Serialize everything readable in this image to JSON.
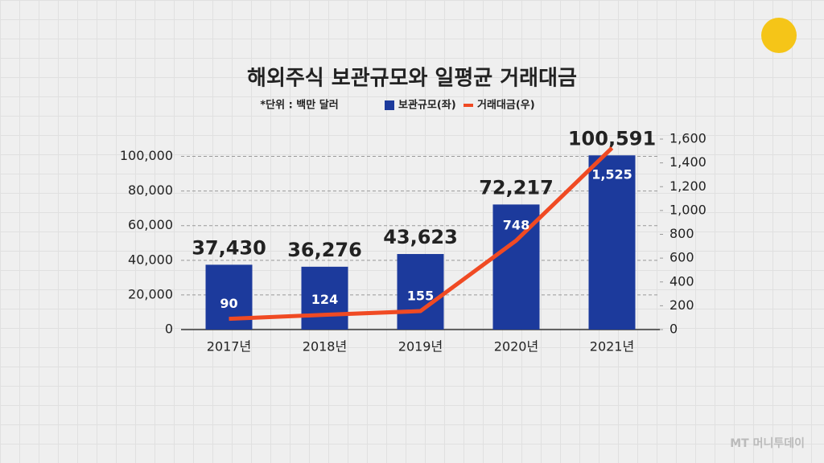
{
  "chart_data": {
    "type": "bar",
    "title": "해외주식 보관규모와 일평균 거래대금",
    "subtitle": "*단위 : 백만 달러",
    "watermark": "MT 머니투데이",
    "categories": [
      "2017년",
      "2018년",
      "2019년",
      "2020년",
      "2021년"
    ],
    "series": [
      {
        "name": "보관규모(좌)",
        "color": "#1c3a9c",
        "values": [
          37430,
          36276,
          43623,
          72217,
          100591
        ],
        "value_labels": [
          "37,430",
          "36,276",
          "43,623",
          "72,217",
          "100,591"
        ]
      },
      {
        "name": "거래대금(우)",
        "type": "line",
        "axis": "y2",
        "color": "#f04a23",
        "values": [
          90,
          124,
          155,
          748,
          1525
        ],
        "value_labels": [
          "90",
          "124",
          "155",
          "748",
          "1,525"
        ]
      }
    ],
    "ylim": [
      0,
      110000
    ],
    "yticks": [
      0,
      {
        "value": 20000,
        "label": "20,000"
      },
      {
        "value": 40000,
        "label": "40,000"
      },
      {
        "value": 60000,
        "label": "60,000"
      },
      {
        "value": 80000,
        "label": "80,000"
      },
      {
        "value": 100000,
        "label": "100,000"
      }
    ],
    "y2lim": [
      0,
      1600
    ],
    "y2ticks": [
      0,
      200,
      400,
      600,
      800,
      {
        "value": 1000,
        "label": "1,000"
      },
      {
        "value": 1200,
        "label": "1,200"
      },
      {
        "value": 1400,
        "label": "1,400"
      },
      {
        "value": 1600,
        "label": "1,600"
      }
    ],
    "grid": true
  }
}
